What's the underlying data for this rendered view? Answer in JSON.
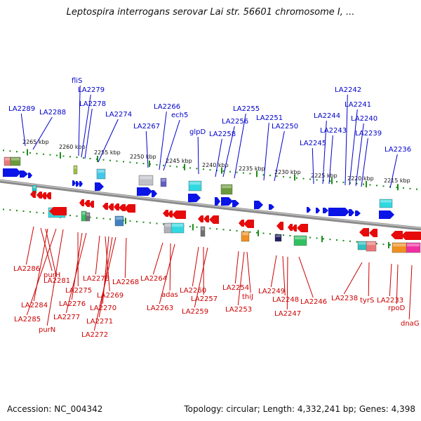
{
  "title": "Leptospira interrogans serovar Lai str. 56601 chromosome I, ...",
  "accession": "Accession: NC_004342",
  "topology": "Topology: circular; Length: 4,332,241 bp; Genes: 4,398",
  "colors": {
    "forward_strand": "#0a14e6",
    "reverse_strand": "#e60a0a",
    "forward_label": "#0000cc",
    "reverse_label": "#cc0000",
    "backbone": "#808080",
    "tick": "#1a8c1a"
  },
  "kbp_ticks": [
    "2265 kbp",
    "2260 kbp",
    "2255 kbp",
    "2250 kbp",
    "2245 kbp",
    "2240 kbp",
    "2235 kbp",
    "2230 kbp",
    "2225 kbp",
    "2220 kbp",
    "2215 kbp"
  ],
  "forward_genes": [
    "LA2289",
    "LA2288",
    "fliS",
    "LA2279",
    "LA2278",
    "LA2274",
    "LA2267",
    "LA2266",
    "ech5",
    "glpD",
    "LA2258",
    "LA2256",
    "LA2255",
    "LA2251",
    "LA2250",
    "LA2245",
    "LA2244",
    "LA2243",
    "LA2242",
    "LA2241",
    "LA2240",
    "LA2239",
    "LA2236"
  ],
  "reverse_genes": [
    "LA2286",
    "purH",
    "LA2281",
    "LA2284",
    "LA2285",
    "purN",
    "LA2275",
    "LA2276",
    "LA2277",
    "LA2273",
    "LA2269",
    "LA2270",
    "LA2271",
    "LA2272",
    "LA2268",
    "LA2264",
    "adas",
    "LA2263",
    "LA2260",
    "LA2257",
    "LA2259",
    "LA2254",
    "thiJ",
    "LA2253",
    "LA2249",
    "LA2248",
    "LA2247",
    "LA2246",
    "LA2238",
    "tyrS",
    "LA2233",
    "rpoD",
    "dnaG"
  ]
}
